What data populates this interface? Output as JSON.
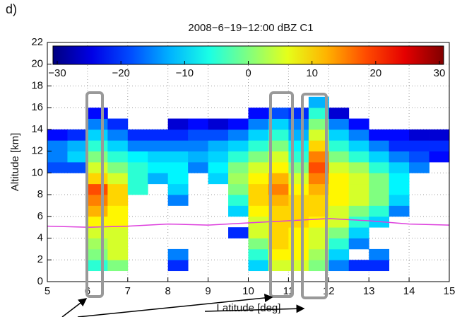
{
  "panel_label": "d)",
  "chart_data": {
    "type": "heatmap",
    "title": "2008−6−19−12:00 dBZ C1",
    "xlabel": "Latitude [deg]",
    "ylabel": "Altitude [km]",
    "xlim": [
      5,
      15
    ],
    "ylim": [
      0,
      22
    ],
    "xticks": [
      5,
      6,
      7,
      8,
      9,
      10,
      11,
      12,
      13,
      14,
      15
    ],
    "yticks": [
      0,
      2,
      4,
      6,
      8,
      10,
      12,
      14,
      16,
      18,
      20,
      22
    ],
    "grid": true,
    "colormap": "jet",
    "colorbar": {
      "lim": [
        -30,
        30
      ],
      "ticks": [
        {
          "value": -30,
          "label": "−30"
        },
        {
          "value": -20,
          "label": "−20"
        },
        {
          "value": -10,
          "label": "−10"
        },
        0,
        10,
        20,
        30
      ]
    },
    "x": [
      5.25,
      5.75,
      6.25,
      6.75,
      7.25,
      7.75,
      8.25,
      8.75,
      9.25,
      9.75,
      10.25,
      10.75,
      11.25,
      11.75,
      12.25,
      12.75,
      13.25,
      13.75,
      14.25,
      14.75
    ],
    "y": [
      1.5,
      2.5,
      3.5,
      4.5,
      5.5,
      6.5,
      7.5,
      8.5,
      9.5,
      10.5,
      11.5,
      12.5,
      13.5,
      14.5,
      15.5,
      16.5
    ],
    "values": [
      [
        null,
        null,
        -5,
        0,
        null,
        null,
        -20,
        null,
        null,
        null,
        -10,
        5,
        5,
        0,
        -15,
        -20,
        -20,
        null,
        null,
        null
      ],
      [
        null,
        null,
        0,
        5,
        null,
        null,
        -15,
        null,
        null,
        null,
        -5,
        8,
        8,
        2,
        -10,
        null,
        -15,
        null,
        null,
        null
      ],
      [
        null,
        null,
        2,
        5,
        null,
        null,
        null,
        null,
        null,
        null,
        0,
        10,
        8,
        5,
        -5,
        -15,
        null,
        null,
        null,
        null
      ],
      [
        null,
        null,
        5,
        5,
        null,
        null,
        null,
        null,
        null,
        -20,
        5,
        10,
        8,
        5,
        0,
        -10,
        null,
        null,
        null,
        null
      ],
      [
        null,
        null,
        8,
        8,
        null,
        null,
        null,
        null,
        null,
        null,
        5,
        10,
        10,
        8,
        5,
        -5,
        -10,
        null,
        null,
        null
      ],
      [
        null,
        null,
        12,
        8,
        null,
        null,
        null,
        null,
        null,
        -10,
        8,
        10,
        10,
        10,
        5,
        0,
        -5,
        -15,
        null,
        null
      ],
      [
        null,
        null,
        15,
        10,
        null,
        null,
        -15,
        null,
        null,
        -5,
        10,
        12,
        10,
        10,
        8,
        5,
        0,
        -10,
        null,
        null
      ],
      [
        null,
        null,
        18,
        10,
        -5,
        null,
        -10,
        null,
        null,
        0,
        10,
        15,
        8,
        12,
        8,
        5,
        0,
        -8,
        null,
        null
      ],
      [
        null,
        null,
        10,
        5,
        -5,
        -12,
        -8,
        null,
        -10,
        2,
        8,
        12,
        5,
        15,
        8,
        5,
        0,
        -8,
        null,
        null
      ],
      [
        -18,
        -18,
        5,
        0,
        -5,
        -8,
        -8,
        -15,
        -8,
        0,
        5,
        8,
        0,
        18,
        5,
        2,
        -5,
        -10,
        -15,
        null
      ],
      [
        -15,
        -10,
        0,
        -5,
        -8,
        -10,
        -10,
        -12,
        -10,
        -5,
        0,
        5,
        -5,
        15,
        0,
        -5,
        -10,
        -15,
        -18,
        -22
      ],
      [
        -15,
        -12,
        -5,
        -10,
        -15,
        -15,
        -15,
        -15,
        -12,
        -10,
        -5,
        0,
        -8,
        10,
        -5,
        -10,
        -15,
        -20,
        -20,
        -20
      ],
      [
        -22,
        -20,
        -10,
        -15,
        -20,
        -20,
        -20,
        -18,
        -18,
        -15,
        -10,
        -5,
        -12,
        5,
        -10,
        -15,
        -22,
        -22,
        -25,
        -25
      ],
      [
        null,
        null,
        -15,
        -20,
        null,
        null,
        -25,
        -22,
        -25,
        -22,
        -15,
        -10,
        -15,
        0,
        -15,
        -22,
        null,
        null,
        null,
        null
      ],
      [
        null,
        null,
        -22,
        null,
        null,
        null,
        null,
        null,
        null,
        null,
        -22,
        -18,
        -20,
        -5,
        -25,
        null,
        null,
        null,
        null,
        null
      ],
      [
        null,
        null,
        null,
        null,
        null,
        null,
        null,
        null,
        null,
        null,
        null,
        null,
        null,
        -12,
        null,
        null,
        null,
        null,
        null,
        null
      ]
    ],
    "lines": [
      {
        "color": "#dd3fdd",
        "x": [
          5,
          6,
          7,
          8,
          9,
          10,
          11,
          12,
          13,
          14,
          15
        ],
        "y": [
          5.1,
          5.0,
          5.1,
          5.3,
          5.2,
          5.4,
          5.6,
          5.8,
          5.6,
          5.3,
          5.2
        ]
      }
    ]
  }
}
